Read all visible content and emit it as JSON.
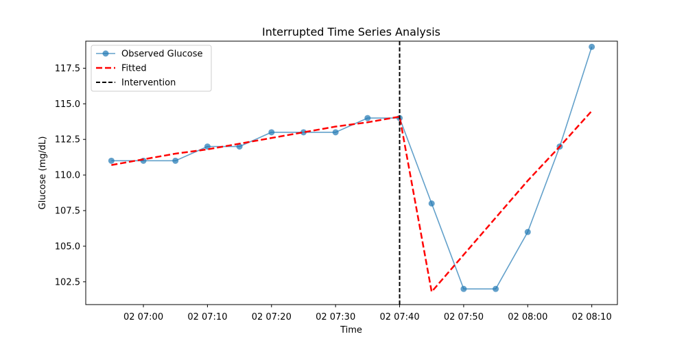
{
  "chart_data": {
    "type": "line",
    "title": "Interrupted Time Series Analysis",
    "xlabel": "Time",
    "ylabel": "Glucose (mg/dL)",
    "x": [
      "06:55",
      "07:00",
      "07:05",
      "07:10",
      "07:15",
      "07:20",
      "07:25",
      "07:30",
      "07:35",
      "07:40",
      "07:45",
      "07:50",
      "07:55",
      "08:00",
      "08:05",
      "08:10"
    ],
    "xlim": [
      "06:51",
      "08:14"
    ],
    "ylim": [
      100.9,
      119.4
    ],
    "x_ticks": [
      "07:00",
      "07:10",
      "07:20",
      "07:30",
      "07:40",
      "07:50",
      "08:00",
      "08:10"
    ],
    "x_tick_labels": [
      "02 07:00",
      "02 07:10",
      "02 07:20",
      "02 07:30",
      "02 07:40",
      "02 07:50",
      "02 08:00",
      "02 08:10"
    ],
    "y_ticks": [
      102.5,
      105.0,
      107.5,
      110.0,
      112.5,
      115.0,
      117.5
    ],
    "y_tick_labels": [
      "102.5",
      "105.0",
      "107.5",
      "110.0",
      "112.5",
      "115.0",
      "117.5"
    ],
    "series": [
      {
        "name": "Observed Glucose",
        "color": "#1f77b4",
        "style": "solid-with-markers",
        "values": [
          111,
          111,
          111,
          112,
          112,
          113,
          113,
          113,
          114,
          114,
          108,
          102,
          102,
          106,
          112,
          119
        ]
      },
      {
        "name": "Fitted",
        "color": "#ff0000",
        "style": "dashed",
        "values": [
          110.7,
          111.1,
          111.5,
          111.8,
          112.2,
          112.6,
          113.0,
          113.4,
          113.7,
          114.1,
          101.8,
          104.4,
          107.0,
          109.6,
          112.0,
          114.5
        ]
      }
    ],
    "vlines": [
      {
        "name": "Intervention",
        "x": "07:40",
        "color": "#000000",
        "style": "dashed"
      }
    ],
    "legend": {
      "position": "top-left",
      "entries": [
        "Observed Glucose",
        "Fitted",
        "Intervention"
      ]
    },
    "grid": false
  }
}
